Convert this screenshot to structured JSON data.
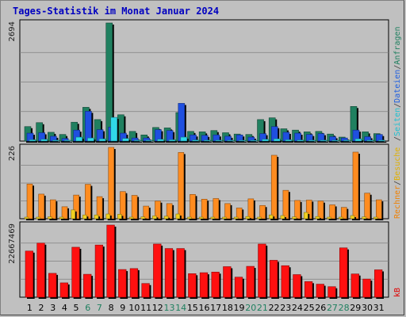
{
  "title": "Tages-Statistik im Monat Januar 2024",
  "panels": {
    "top": {
      "ymax_label": "2694"
    },
    "middle": {
      "ymax_label": "226"
    },
    "bottom": {
      "ymax_label": "22667469"
    }
  },
  "right_labels": {
    "top": [
      {
        "text": "Anfragen",
        "color": "#208060"
      },
      {
        "text": "/",
        "color": "#404040"
      },
      {
        "text": "Dateien",
        "color": "#2060e0"
      },
      {
        "text": "/",
        "color": "#404040"
      },
      {
        "text": "Seiten",
        "color": "#20c0d0"
      },
      {
        "text": "/",
        "color": "#404040"
      }
    ],
    "middle": [
      {
        "text": "Besuche",
        "color": "#e0b000"
      },
      {
        "text": "/",
        "color": "#404040"
      },
      {
        "text": "Rechner",
        "color": "#f08000"
      }
    ],
    "bottom": [
      {
        "text": "kB",
        "color": "#e00000"
      }
    ]
  },
  "colors": {
    "anfragen": "#208060",
    "dateien": "#1f4fe0",
    "seiten": "#30d8e8",
    "rechner": "#ff8c20",
    "besuche": "#f0d020",
    "kb": "#ff1010",
    "weekend_tick": "#208060",
    "weekday_tick": "#000000"
  },
  "chart_data": [
    {
      "type": "bar",
      "title": "Tages-Statistik im Monat Januar 2024",
      "categories": [
        "1",
        "2",
        "3",
        "4",
        "5",
        "6",
        "7",
        "8",
        "9",
        "10",
        "11",
        "12",
        "13",
        "14",
        "15",
        "16",
        "17",
        "18",
        "19",
        "20",
        "21",
        "22",
        "23",
        "24",
        "25",
        "26",
        "27",
        "28",
        "29",
        "30",
        "31"
      ],
      "weekend_days": [
        "6",
        "7",
        "13",
        "14",
        "20",
        "21",
        "27",
        "28"
      ],
      "ylim": [
        0,
        2694
      ],
      "series": [
        {
          "name": "Anfragen",
          "values": [
            330,
            420,
            200,
            150,
            430,
            770,
            490,
            2694,
            600,
            220,
            140,
            310,
            300,
            650,
            220,
            210,
            240,
            190,
            160,
            150,
            490,
            530,
            280,
            250,
            210,
            220,
            160,
            90,
            790,
            210,
            170
          ]
        },
        {
          "name": "Dateien",
          "values": [
            180,
            190,
            110,
            60,
            250,
            680,
            260,
            320,
            180,
            70,
            70,
            260,
            240,
            860,
            140,
            130,
            140,
            110,
            140,
            90,
            170,
            330,
            200,
            180,
            150,
            170,
            100,
            70,
            250,
            100,
            150
          ]
        },
        {
          "name": "Seiten",
          "values": [
            30,
            40,
            20,
            10,
            90,
            70,
            50,
            540,
            60,
            15,
            10,
            40,
            30,
            90,
            25,
            20,
            20,
            15,
            15,
            10,
            40,
            50,
            30,
            25,
            20,
            20,
            15,
            10,
            50,
            20,
            20
          ]
        }
      ]
    },
    {
      "type": "bar",
      "ylim": [
        0,
        226
      ],
      "series": [
        {
          "name": "Rechner",
          "values": [
            110,
            78,
            60,
            38,
            75,
            109,
            70,
            226,
            86,
            74,
            40,
            56,
            48,
            210,
            77,
            62,
            64,
            48,
            34,
            63,
            42,
            201,
            90,
            58,
            59,
            56,
            44,
            36,
            211,
            81,
            60
          ]
        },
        {
          "name": "Besuche",
          "values": [
            5,
            5,
            6,
            5,
            28,
            12,
            12,
            15,
            14,
            5,
            6,
            9,
            8,
            15,
            5,
            5,
            5,
            5,
            5,
            7,
            5,
            12,
            10,
            6,
            20,
            7,
            5,
            5,
            10,
            6,
            5
          ]
        }
      ]
    },
    {
      "type": "bar",
      "ylim": [
        0,
        22667469
      ],
      "series": [
        {
          "name": "kB",
          "values": [
            14500000,
            17000000,
            7500000,
            4500000,
            15700000,
            7200000,
            16400000,
            22667469,
            8700000,
            9000000,
            4300000,
            16700000,
            15300000,
            15300000,
            7400000,
            7700000,
            7900000,
            9600000,
            6300000,
            9700000,
            16700000,
            11600000,
            9900000,
            7100000,
            4900000,
            4100000,
            3300000,
            15500000,
            7300000,
            5700000,
            8600000
          ]
        }
      ]
    }
  ]
}
